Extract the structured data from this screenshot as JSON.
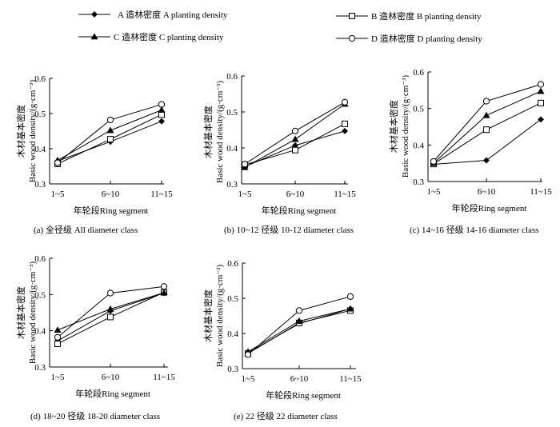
{
  "legend": [
    {
      "key": "A",
      "label": "A 造林密度 A planting density",
      "marker": "diamond"
    },
    {
      "key": "B",
      "label": "B 造林密度 B planting density",
      "marker": "square"
    },
    {
      "key": "C",
      "label": "C 造林密度 C planting density",
      "marker": "triangle"
    },
    {
      "key": "D",
      "label": "D 造林密度 D planting density",
      "marker": "circle"
    }
  ],
  "chart_data": [
    {
      "type": "line",
      "title": "(a) 全径级 All diameter class",
      "xlabel": "年轮段Ring  segment",
      "ylabel_cn": "木材基本密度",
      "ylabel_en": "Basic wood density/(g·cm⁻³)",
      "categories": [
        "1~5",
        "6~10",
        "11~15"
      ],
      "yticks": [
        "0.3",
        "0.4",
        "0.5",
        "0.6"
      ],
      "ylim": [
        0.3,
        0.6
      ],
      "series": [
        {
          "name": "A",
          "values": [
            0.365,
            0.42,
            0.478
          ]
        },
        {
          "name": "B",
          "values": [
            0.357,
            0.427,
            0.497
          ]
        },
        {
          "name": "C",
          "values": [
            0.367,
            0.452,
            0.51
          ]
        },
        {
          "name": "D",
          "values": [
            0.36,
            0.482,
            0.526
          ]
        }
      ]
    },
    {
      "type": "line",
      "title": "(b) 10~12 径级 10-12 diameter class",
      "xlabel": "年轮段Ring  segment",
      "ylabel_cn": "木材基本密度",
      "ylabel_en": "Basic wood density/(g·cm⁻³)",
      "categories": [
        "1~5",
        "6~10",
        "11~15"
      ],
      "yticks": [
        "0.3",
        "0.4",
        "0.5",
        "0.6"
      ],
      "ylim": [
        0.3,
        0.6
      ],
      "series": [
        {
          "name": "A",
          "values": [
            0.348,
            0.407,
            0.447
          ]
        },
        {
          "name": "B",
          "values": [
            0.353,
            0.394,
            0.467
          ]
        },
        {
          "name": "C",
          "values": [
            0.346,
            0.424,
            0.522
          ]
        },
        {
          "name": "D",
          "values": [
            0.355,
            0.447,
            0.527
          ]
        }
      ]
    },
    {
      "type": "line",
      "title": "(c) 14~16 径级 14-16 diameter class",
      "xlabel": "年轮段Ring  segment",
      "ylabel_cn": "木材基本密度",
      "ylabel_en": "Basic wood density/(g·cm⁻³)",
      "categories": [
        "1~5",
        "6~10",
        "11~15"
      ],
      "yticks": [
        "0.3",
        "0.4",
        "0.5",
        "0.6"
      ],
      "ylim": [
        0.3,
        0.6
      ],
      "series": [
        {
          "name": "A",
          "values": [
            0.347,
            0.358,
            0.47
          ]
        },
        {
          "name": "B",
          "values": [
            0.348,
            0.442,
            0.515
          ]
        },
        {
          "name": "C",
          "values": [
            0.35,
            0.481,
            0.547
          ]
        },
        {
          "name": "D",
          "values": [
            0.355,
            0.52,
            0.566
          ]
        }
      ]
    },
    {
      "type": "line",
      "title": "(d) 18~20 径级 18-20 diameter class",
      "xlabel": "年轮段Ring  segment",
      "ylabel_cn": "木材基本密度",
      "ylabel_en": "Basic wood density/(g·cm⁻³)",
      "categories": [
        "1~5",
        "6~10",
        "11~15"
      ],
      "yticks": [
        "0.3",
        "0.4",
        "0.5",
        "0.6"
      ],
      "ylim": [
        0.3,
        0.6
      ],
      "series": [
        {
          "name": "A",
          "values": [
            0.372,
            0.455,
            0.504
          ]
        },
        {
          "name": "B",
          "values": [
            0.364,
            0.438,
            0.506
          ]
        },
        {
          "name": "C",
          "values": [
            0.402,
            0.46,
            0.505
          ]
        },
        {
          "name": "D",
          "values": [
            0.382,
            0.504,
            0.522
          ]
        }
      ]
    },
    {
      "type": "line",
      "title": "(e) 22 径级 22 diameter class",
      "xlabel": "年轮段Ring  segment",
      "ylabel_cn": "木材基本密度",
      "ylabel_en": "Basic wood density/(g·cm⁻³)",
      "categories": [
        "1~5",
        "6~10",
        "11~15"
      ],
      "yticks": [
        "0.3",
        "0.4",
        "0.5",
        "0.6"
      ],
      "ylim": [
        0.3,
        0.6
      ],
      "series": [
        {
          "name": "A",
          "values": [
            0.345,
            0.428,
            0.47
          ]
        },
        {
          "name": "B",
          "values": [
            0.343,
            0.43,
            0.465
          ]
        },
        {
          "name": "C",
          "values": [
            0.348,
            0.435,
            0.47
          ]
        },
        {
          "name": "D",
          "values": [
            0.34,
            0.465,
            0.505
          ]
        }
      ]
    }
  ]
}
